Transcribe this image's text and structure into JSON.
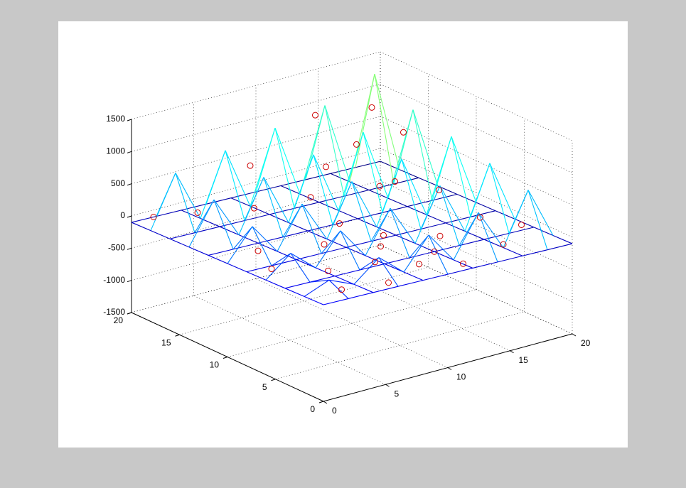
{
  "chart_data": {
    "type": "mesh3d",
    "x": [
      0,
      2,
      4,
      6,
      8,
      10,
      12,
      14,
      16,
      18,
      20
    ],
    "y": [
      0,
      2,
      4,
      6,
      8,
      10,
      12,
      14,
      16,
      18,
      20
    ],
    "z": [
      [
        0,
        -10,
        -20,
        -30,
        -40,
        -50,
        -60,
        -70,
        -80,
        -90,
        -100
      ],
      [
        -10,
        140,
        -30,
        280,
        -50,
        420,
        -70,
        560,
        -90,
        700,
        -110
      ],
      [
        -20,
        -30,
        -40,
        -50,
        -60,
        -70,
        -80,
        -90,
        -100,
        -110,
        -120
      ],
      [
        -30,
        280,
        -50,
        420,
        -70,
        560,
        -90,
        700,
        -110,
        840,
        -130
      ],
      [
        -40,
        -50,
        -60,
        -70,
        -80,
        -90,
        -100,
        -110,
        -120,
        -130,
        -140
      ],
      [
        -50,
        420,
        -70,
        560,
        -90,
        700,
        -110,
        840,
        -130,
        980,
        -150
      ],
      [
        -60,
        -70,
        -80,
        -90,
        -100,
        -110,
        -120,
        -130,
        -140,
        -150,
        -160
      ],
      [
        -70,
        560,
        -90,
        700,
        -110,
        840,
        -130,
        980,
        -150,
        1120,
        -170
      ],
      [
        -80,
        -90,
        -100,
        -110,
        -120,
        -130,
        -140,
        -150,
        -160,
        -170,
        -180
      ],
      [
        -90,
        700,
        -110,
        840,
        -130,
        980,
        -150,
        1120,
        -170,
        1400,
        -190
      ],
      [
        -100,
        -110,
        -120,
        -130,
        -140,
        -150,
        -160,
        -170,
        -180,
        -190,
        -200
      ]
    ],
    "points": {
      "color": "#cc0000",
      "x": [
        1,
        3,
        4,
        6,
        7,
        8,
        9,
        10,
        11,
        12,
        13,
        14,
        15,
        16,
        17,
        18,
        19,
        2,
        5,
        8,
        11,
        14,
        17,
        3,
        6,
        9,
        12,
        15,
        18,
        10
      ],
      "y": [
        19,
        17,
        12,
        15,
        9,
        5,
        13,
        3,
        8,
        1,
        11,
        6,
        16,
        2,
        10,
        7,
        4,
        8,
        6,
        18,
        14,
        19,
        17,
        2,
        1,
        10,
        4,
        12,
        15,
        7
      ],
      "z": [
        0,
        100,
        -200,
        150,
        -50,
        -100,
        300,
        -100,
        -50,
        -60,
        400,
        -80,
        600,
        -40,
        200,
        -70,
        -30,
        -100,
        -150,
        500,
        600,
        900,
        1000,
        -60,
        -40,
        100,
        -80,
        300,
        700,
        -100
      ]
    },
    "xlim": [
      0,
      20
    ],
    "ylim": [
      0,
      20
    ],
    "zlim": [
      -1500,
      1500
    ],
    "xticks": [
      0,
      5,
      10,
      15,
      20
    ],
    "yticks": [
      0,
      5,
      10,
      15,
      20
    ],
    "zticks": [
      -1500,
      -1000,
      -500,
      0,
      500,
      1000,
      1500
    ],
    "grid": true
  }
}
